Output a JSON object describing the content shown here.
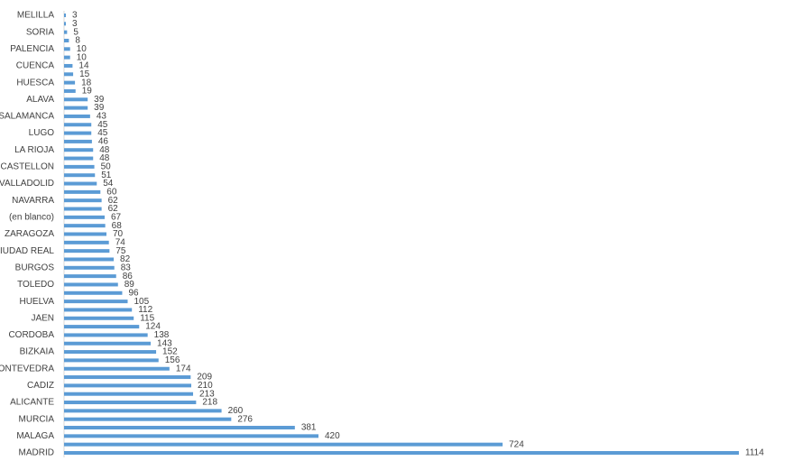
{
  "chart_data": {
    "type": "bar",
    "orientation": "horizontal",
    "color": "#5b9bd5",
    "categories": [
      "MELILLA",
      null,
      "SORIA",
      null,
      "PALENCIA",
      null,
      "CUENCA",
      null,
      "HUESCA",
      null,
      "ALAVA",
      null,
      "SALAMANCA",
      null,
      "LUGO",
      null,
      "LA RIOJA",
      null,
      "CASTELLON",
      null,
      "VALLADOLID",
      null,
      "NAVARRA",
      null,
      "(en blanco)",
      null,
      "ZARAGOZA",
      null,
      "CIUDAD REAL",
      null,
      "BURGOS",
      null,
      "TOLEDO",
      null,
      "HUELVA",
      null,
      "JAEN",
      null,
      "CORDOBA",
      null,
      "BIZKAIA",
      null,
      "PONTEVEDRA",
      null,
      "CADIZ",
      null,
      "ALICANTE",
      null,
      "MURCIA",
      null,
      "MALAGA",
      null,
      "MADRID"
    ],
    "values": [
      3,
      3,
      5,
      8,
      10,
      10,
      14,
      15,
      18,
      19,
      39,
      39,
      43,
      45,
      45,
      46,
      48,
      48,
      50,
      51,
      54,
      60,
      62,
      62,
      67,
      68,
      70,
      74,
      75,
      82,
      83,
      86,
      89,
      96,
      105,
      112,
      115,
      124,
      138,
      143,
      152,
      156,
      174,
      209,
      210,
      213,
      218,
      260,
      276,
      381,
      420,
      724,
      1114
    ]
  }
}
